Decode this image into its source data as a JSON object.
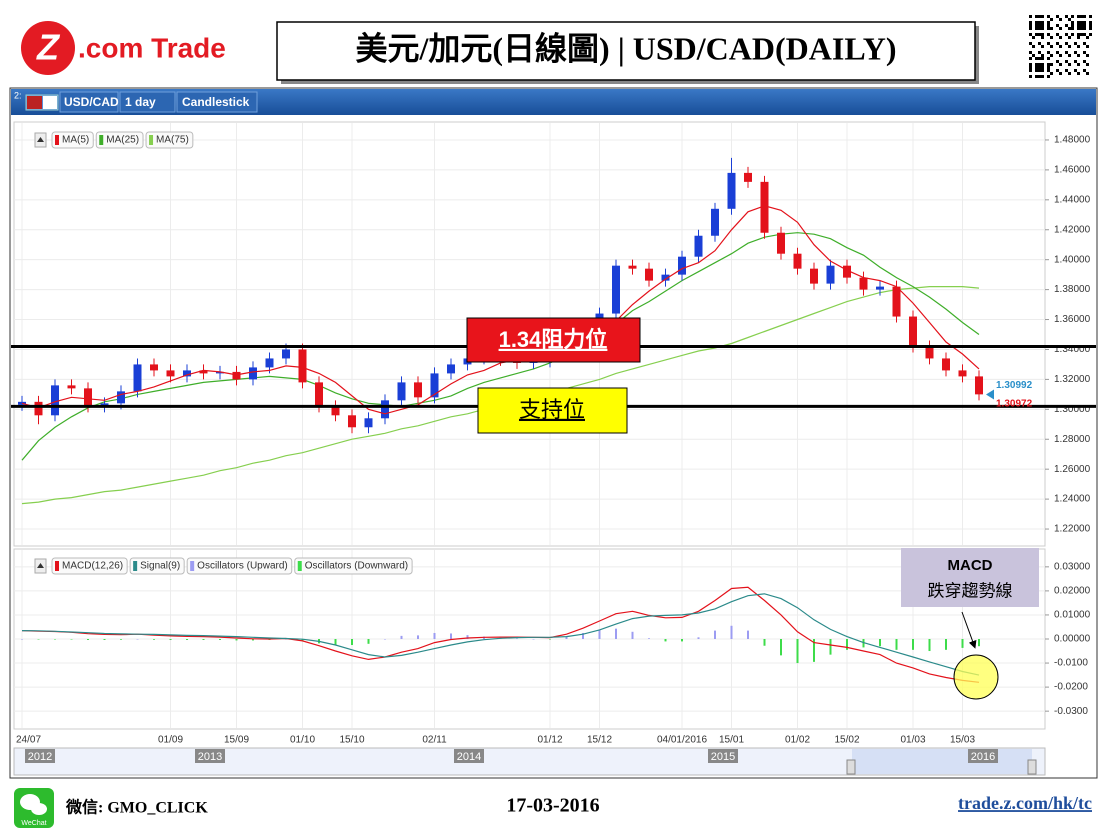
{
  "header": {
    "logo_mark": "Z",
    "logo_text": ".com Trade",
    "title": "美元/加元(日線圖) | USD/CAD(DAILY)"
  },
  "toolbar": {
    "panel": "2:",
    "symbol": "USD/CAD",
    "interval": "1 day",
    "style": "Candlestick"
  },
  "chart_data": {
    "type": "candlestick",
    "up_color": "#1a3fd6",
    "down_color": "#e3121b",
    "categories": [
      "24/07",
      null,
      null,
      null,
      null,
      null,
      null,
      null,
      null,
      "01/09",
      null,
      null,
      null,
      "15/09",
      null,
      null,
      null,
      "01/10",
      null,
      null,
      "15/10",
      null,
      null,
      null,
      null,
      "02/11",
      null,
      null,
      null,
      null,
      null,
      null,
      "01/12",
      null,
      null,
      "15/12",
      null,
      null,
      null,
      null,
      "04/01/2016",
      null,
      null,
      "15/01",
      null,
      null,
      null,
      "01/02",
      null,
      null,
      "15/02",
      null,
      null,
      null,
      "01/03",
      null,
      null,
      "15/03",
      null
    ],
    "open": [
      1.303,
      1.305,
      1.296,
      1.316,
      1.314,
      1.302,
      1.304,
      1.312,
      1.33,
      1.326,
      1.322,
      1.326,
      1.324,
      1.325,
      1.32,
      1.328,
      1.334,
      1.34,
      1.318,
      1.302,
      1.296,
      1.288,
      1.294,
      1.306,
      1.318,
      1.308,
      1.324,
      1.33,
      1.334,
      1.336,
      1.333,
      1.331,
      1.332,
      1.338,
      1.346,
      1.352,
      1.364,
      1.396,
      1.394,
      1.386,
      1.39,
      1.402,
      1.416,
      1.434,
      1.458,
      1.452,
      1.418,
      1.404,
      1.394,
      1.384,
      1.396,
      1.388,
      1.38,
      1.382,
      1.362,
      1.342,
      1.334,
      1.326,
      1.322
    ],
    "high": [
      1.309,
      1.309,
      1.32,
      1.32,
      1.318,
      1.308,
      1.316,
      1.334,
      1.334,
      1.33,
      1.33,
      1.33,
      1.329,
      1.329,
      1.332,
      1.338,
      1.344,
      1.344,
      1.322,
      1.306,
      1.3,
      1.298,
      1.31,
      1.322,
      1.322,
      1.328,
      1.334,
      1.338,
      1.34,
      1.34,
      1.337,
      1.336,
      1.342,
      1.35,
      1.356,
      1.368,
      1.4,
      1.4,
      1.398,
      1.394,
      1.406,
      1.42,
      1.438,
      1.468,
      1.462,
      1.456,
      1.422,
      1.408,
      1.398,
      1.4,
      1.4,
      1.392,
      1.386,
      1.386,
      1.366,
      1.346,
      1.338,
      1.33,
      1.326
    ],
    "low": [
      1.299,
      1.29,
      1.292,
      1.31,
      1.298,
      1.298,
      1.3,
      1.308,
      1.322,
      1.318,
      1.318,
      1.32,
      1.32,
      1.316,
      1.316,
      1.324,
      1.33,
      1.314,
      1.298,
      1.292,
      1.284,
      1.284,
      1.29,
      1.302,
      1.304,
      1.304,
      1.32,
      1.326,
      1.33,
      1.329,
      1.327,
      1.327,
      1.328,
      1.334,
      1.342,
      1.348,
      1.36,
      1.39,
      1.382,
      1.382,
      1.386,
      1.398,
      1.412,
      1.43,
      1.448,
      1.414,
      1.4,
      1.39,
      1.38,
      1.38,
      1.384,
      1.376,
      1.376,
      1.358,
      1.338,
      1.33,
      1.322,
      1.318,
      1.306
    ],
    "close": [
      1.305,
      1.296,
      1.316,
      1.314,
      1.302,
      1.304,
      1.312,
      1.33,
      1.326,
      1.322,
      1.326,
      1.324,
      1.325,
      1.32,
      1.328,
      1.334,
      1.34,
      1.318,
      1.302,
      1.296,
      1.288,
      1.294,
      1.306,
      1.318,
      1.308,
      1.324,
      1.33,
      1.334,
      1.336,
      1.333,
      1.331,
      1.332,
      1.338,
      1.346,
      1.352,
      1.364,
      1.396,
      1.394,
      1.386,
      1.39,
      1.402,
      1.416,
      1.434,
      1.458,
      1.452,
      1.418,
      1.404,
      1.394,
      1.384,
      1.396,
      1.388,
      1.38,
      1.382,
      1.362,
      1.342,
      1.334,
      1.326,
      1.322,
      1.31
    ],
    "series": [
      {
        "name": "MA(5)",
        "color": "#e3121b",
        "values": [
          1.304,
          1.301,
          1.305,
          1.308,
          1.307,
          1.306,
          1.31,
          1.312,
          1.315,
          1.319,
          1.323,
          1.326,
          1.325,
          1.323,
          1.325,
          1.326,
          1.329,
          1.328,
          1.324,
          1.318,
          1.309,
          1.3,
          1.297,
          1.3,
          1.303,
          1.31,
          1.317,
          1.323,
          1.326,
          1.331,
          1.333,
          1.333,
          1.334,
          1.336,
          1.34,
          1.346,
          1.359,
          1.37,
          1.379,
          1.387,
          1.394,
          1.398,
          1.406,
          1.42,
          1.432,
          1.436,
          1.433,
          1.425,
          1.41,
          1.399,
          1.393,
          1.388,
          1.386,
          1.382,
          1.371,
          1.358,
          1.345,
          1.337,
          1.327
        ]
      },
      {
        "name": "MA(25)",
        "color": "#3fae2a",
        "values": [
          1.266,
          1.279,
          1.288,
          1.295,
          1.301,
          1.305,
          1.307,
          1.31,
          1.312,
          1.314,
          1.316,
          1.318,
          1.319,
          1.32,
          1.321,
          1.322,
          1.321,
          1.32,
          1.316,
          1.311,
          1.307,
          1.304,
          1.303,
          1.302,
          1.304,
          1.306,
          1.309,
          1.314,
          1.318,
          1.321,
          1.324,
          1.327,
          1.331,
          1.336,
          1.343,
          1.349,
          1.357,
          1.366,
          1.372,
          1.379,
          1.386,
          1.392,
          1.398,
          1.404,
          1.411,
          1.415,
          1.417,
          1.418,
          1.417,
          1.414,
          1.408,
          1.403,
          1.395,
          1.388,
          1.382,
          1.375,
          1.367,
          1.358,
          1.35
        ]
      },
      {
        "name": "MA(75)",
        "color": "#86cf4f",
        "values": [
          1.237,
          1.238,
          1.24,
          1.241,
          1.243,
          1.245,
          1.246,
          1.248,
          1.25,
          1.252,
          1.254,
          1.256,
          1.259,
          1.261,
          1.264,
          1.266,
          1.269,
          1.271,
          1.274,
          1.277,
          1.28,
          1.282,
          1.284,
          1.287,
          1.289,
          1.292,
          1.295,
          1.297,
          1.3,
          1.302,
          1.305,
          1.307,
          1.31,
          1.314,
          1.317,
          1.32,
          1.324,
          1.327,
          1.33,
          1.333,
          1.336,
          1.339,
          1.341,
          1.344,
          1.348,
          1.352,
          1.356,
          1.36,
          1.364,
          1.368,
          1.372,
          1.375,
          1.378,
          1.38,
          1.381,
          1.382,
          1.382,
          1.382,
          1.381
        ]
      }
    ],
    "ylim": [
      1.21,
      1.49
    ],
    "yticks": [
      {
        "value": 1.22,
        "label": "1.22000"
      },
      {
        "value": 1.24,
        "label": "1.24000"
      },
      {
        "value": 1.26,
        "label": "1.26000"
      },
      {
        "value": 1.28,
        "label": "1.28000"
      },
      {
        "value": 1.3,
        "label": "1.30000"
      },
      {
        "value": 1.32,
        "label": "1.32000"
      },
      {
        "value": 1.34,
        "label": "1.34000"
      },
      {
        "value": 1.36,
        "label": "1.36000"
      },
      {
        "value": 1.38,
        "label": "1.38000"
      },
      {
        "value": 1.4,
        "label": "1.40000"
      },
      {
        "value": 1.42,
        "label": "1.42000"
      },
      {
        "value": 1.44,
        "label": "1.44000"
      },
      {
        "value": 1.46,
        "label": "1.46000"
      },
      {
        "value": 1.48,
        "label": "1.48000"
      }
    ],
    "grid": true,
    "last_prices": [
      {
        "value": 1.30992,
        "color": "#2a8fc9"
      },
      {
        "value": 1.30972,
        "color": "#e3121b"
      }
    ],
    "annotations": {
      "resistance": {
        "text": "1.34阻力位",
        "value": 1.342
      },
      "support": {
        "text": "支持位",
        "value": 1.302
      },
      "macd_note": [
        "MACD",
        "跌穿趨勢線"
      ]
    },
    "macd_panel": {
      "ylim": [
        -0.037,
        0.037
      ],
      "yticks": [
        {
          "value": 0.03,
          "label": "0.03000"
        },
        {
          "value": 0.02,
          "label": "0.02000"
        },
        {
          "value": 0.01,
          "label": "0.01000"
        },
        {
          "value": 0,
          "label": "0.00000"
        },
        {
          "value": -0.01,
          "label": "-0.0100"
        },
        {
          "value": -0.02,
          "label": "-0.0200"
        },
        {
          "value": -0.03,
          "label": "-0.0300"
        }
      ],
      "series": [
        {
          "name": "MACD(12,26)",
          "color": "#e3121b",
          "values": [
            0.0035,
            0.0033,
            0.0031,
            0.0028,
            0.0022,
            0.0019,
            0.0018,
            0.002,
            0.0016,
            0.0013,
            0.0011,
            0.001,
            0.0008,
            0.0004,
            0.0001,
            0,
            0.0002,
            -0.0008,
            -0.0028,
            -0.005,
            -0.007,
            -0.0085,
            -0.0075,
            -0.0055,
            -0.004,
            -0.0015,
            -0.0002,
            0.0004,
            0.0007,
            0.0008,
            0.0008,
            0.0007,
            0.0006,
            0.002,
            0.0045,
            0.0075,
            0.0105,
            0.0115,
            0.0098,
            0.0088,
            0.009,
            0.0115,
            0.016,
            0.021,
            0.0215,
            0.016,
            0.01,
            0.003,
            -0.0015,
            -0.0025,
            -0.0035,
            -0.005,
            -0.0065,
            -0.01,
            -0.012,
            -0.0145,
            -0.016,
            -0.0172,
            -0.018
          ]
        },
        {
          "name": "Signal(9)",
          "color": "#2b8a8a",
          "values": [
            0.0035,
            0.0034,
            0.0032,
            0.0029,
            0.0026,
            0.0023,
            0.0021,
            0.002,
            0.0019,
            0.0017,
            0.0015,
            0.0014,
            0.0012,
            0.001,
            0.0007,
            0.0004,
            0.0002,
            -0.0001,
            -0.001,
            -0.0025,
            -0.0045,
            -0.0065,
            -0.0075,
            -0.0068,
            -0.0055,
            -0.004,
            -0.0025,
            -0.0012,
            -0.0003,
            0.0003,
            0.0006,
            0.0007,
            0.0007,
            0.001,
            0.002,
            0.0038,
            0.0062,
            0.0085,
            0.0095,
            0.0098,
            0.01,
            0.0108,
            0.0125,
            0.0155,
            0.018,
            0.0188,
            0.0168,
            0.013,
            0.008,
            0.004,
            0.001,
            -0.0015,
            -0.0035,
            -0.0055,
            -0.0075,
            -0.0095,
            -0.0115,
            -0.0135,
            -0.015
          ]
        }
      ],
      "histogram_series": [
        {
          "name": "Oscillators (Upward)",
          "color": "#9c9cf2"
        },
        {
          "name": "Oscillators (Downward)",
          "color": "#3ddc4a"
        }
      ],
      "histogram": [
        0,
        -0.0001,
        -0.0001,
        -0.0001,
        -0.0004,
        -0.0004,
        -0.0003,
        0,
        -0.0003,
        -0.0004,
        -0.0004,
        -0.0004,
        -0.0004,
        -0.0006,
        -0.0006,
        -0.0004,
        0,
        -0.0007,
        -0.0018,
        -0.0025,
        -0.0025,
        -0.002,
        0,
        0.0013,
        0.0015,
        0.0025,
        0.0023,
        0.0016,
        0.001,
        0.0005,
        0.0002,
        0,
        -0.0001,
        0.001,
        0.0025,
        0.0037,
        0.0043,
        0.003,
        0.0003,
        -0.001,
        -0.001,
        0.0007,
        0.0035,
        0.0055,
        0.0035,
        -0.0028,
        -0.0068,
        -0.01,
        -0.0095,
        -0.0065,
        -0.0045,
        -0.0035,
        -0.003,
        -0.0045,
        -0.0045,
        -0.005,
        -0.0045,
        -0.0037,
        -0.003
      ]
    },
    "navigator_years": [
      "2012",
      "2013",
      "2014",
      "2015",
      "2016"
    ]
  },
  "footer": {
    "wechat_icon_label": "WeChat",
    "wechat": "微信: GMO_CLICK",
    "date": "17-03-2016",
    "url": "trade.z.com/hk/tc"
  }
}
